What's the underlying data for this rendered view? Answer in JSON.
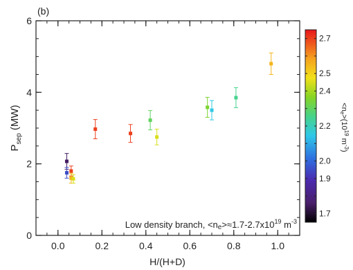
{
  "chart_data": {
    "type": "scatter",
    "panel_label": "(b)",
    "xlabel": "H/(H+D)",
    "ylabel": {
      "main": "P",
      "sub": "sep",
      "rest": " (MW)"
    },
    "xlim": [
      -0.1,
      1.1
    ],
    "ylim": [
      0,
      6
    ],
    "xticks": [
      0.0,
      0.2,
      0.4,
      0.6,
      0.8,
      1.0
    ],
    "xtick_labels": [
      "0.0",
      "0.2",
      "0.4",
      "0.6",
      "0.8",
      "1.0"
    ],
    "yticks": [
      0,
      2,
      4,
      6
    ],
    "ytick_labels": [
      "0",
      "2",
      "4",
      "6"
    ],
    "x_minor_step": 0.05,
    "y_minor_step": 0.5,
    "annotation": {
      "prefix": "Low density branch, <n",
      "sub": "e",
      "middle": ">≈1.7-2.7x10",
      "sup": "19",
      "suffix": " m",
      "sup2": "-3"
    },
    "colorbar": {
      "label": "<n_e>(10^19 m^-3)",
      "label_main": "<n",
      "label_sub": "e",
      "label_rest": ">(10",
      "label_sup": "19",
      "label_rest2": " m",
      "label_sup2": "-3",
      "label_end": ")",
      "range": [
        1.65,
        2.75
      ],
      "ticks": [
        1.7,
        1.8,
        1.9,
        2.0,
        2.1,
        2.2,
        2.3,
        2.4,
        2.5,
        2.6,
        2.7
      ],
      "tick_labels": [
        "1.7",
        "",
        "1.9",
        "2.0",
        "",
        "2.2",
        "",
        "2.4",
        "2.5",
        "",
        "2.7"
      ],
      "colormap": "rainbow (black → purple → blue → cyan → green → yellow → orange → red)"
    },
    "points": [
      {
        "x": 0.04,
        "y": 2.07,
        "err": 0.22,
        "c": 1.75
      },
      {
        "x": 0.04,
        "y": 1.75,
        "err": 0.15,
        "c": 1.95
      },
      {
        "x": 0.06,
        "y": 1.8,
        "err": 0.14,
        "c": 2.7
      },
      {
        "x": 0.06,
        "y": 1.6,
        "err": 0.14,
        "c": 2.55
      },
      {
        "x": 0.07,
        "y": 1.58,
        "err": 0.12,
        "c": 2.45
      },
      {
        "x": 0.17,
        "y": 2.97,
        "err": 0.27,
        "c": 2.7
      },
      {
        "x": 0.33,
        "y": 2.85,
        "err": 0.25,
        "c": 2.7
      },
      {
        "x": 0.42,
        "y": 3.22,
        "err": 0.27,
        "c": 2.3
      },
      {
        "x": 0.45,
        "y": 2.75,
        "err": 0.22,
        "c": 2.45
      },
      {
        "x": 0.68,
        "y": 3.58,
        "err": 0.28,
        "c": 2.35
      },
      {
        "x": 0.7,
        "y": 3.5,
        "err": 0.27,
        "c": 2.15
      },
      {
        "x": 0.81,
        "y": 3.85,
        "err": 0.28,
        "c": 2.25
      },
      {
        "x": 0.97,
        "y": 4.8,
        "err": 0.3,
        "c": 2.55
      }
    ]
  }
}
